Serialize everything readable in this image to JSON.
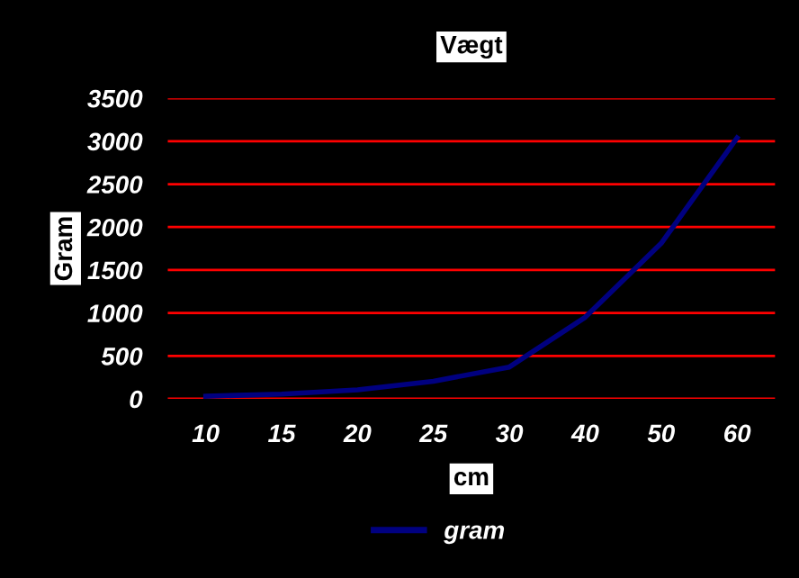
{
  "chart_data": {
    "type": "line",
    "title": "Vægt",
    "xlabel": "cm",
    "ylabel": "Gram",
    "categories": [
      "10",
      "15",
      "20",
      "25",
      "30",
      "40",
      "50",
      "60"
    ],
    "series": [
      {
        "name": "gram",
        "color": "#000080",
        "values": [
          30,
          55,
          105,
          205,
          370,
          950,
          1810,
          3040
        ]
      }
    ],
    "ylim": [
      0,
      3500
    ],
    "yticks": [
      0,
      500,
      1000,
      1500,
      2000,
      2500,
      3000,
      3500
    ],
    "grid": "y",
    "legend": "bottom",
    "marker": "none",
    "line_style": "solid"
  }
}
